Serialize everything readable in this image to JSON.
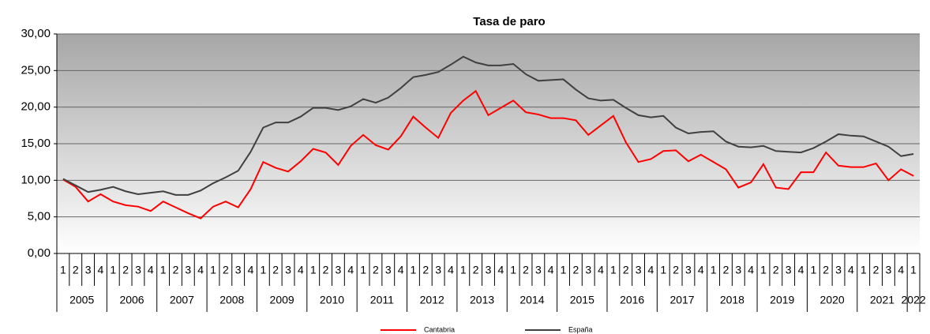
{
  "chart_data": {
    "type": "line",
    "title": "Tasa de paro",
    "categories": [
      "1",
      "2",
      "3",
      "4",
      "1",
      "2",
      "3",
      "4",
      "1",
      "2",
      "3",
      "4",
      "1",
      "2",
      "3",
      "4",
      "1",
      "2",
      "3",
      "4",
      "1",
      "2",
      "3",
      "4",
      "1",
      "2",
      "3",
      "4",
      "1",
      "2",
      "3",
      "4",
      "1",
      "2",
      "3",
      "4",
      "1",
      "2",
      "3",
      "4",
      "1",
      "2",
      "3",
      "4",
      "1",
      "2",
      "3",
      "4",
      "1",
      "2",
      "3",
      "4",
      "1",
      "2",
      "3",
      "4",
      "1",
      "2",
      "3",
      "4",
      "1",
      "2",
      "3",
      "4",
      "1",
      "2",
      "3",
      "4",
      "1"
    ],
    "years": [
      "2005",
      "2006",
      "2007",
      "2008",
      "2009",
      "2010",
      "2011",
      "2012",
      "2013",
      "2014",
      "2015",
      "2016",
      "2017",
      "2018",
      "2019",
      "2020",
      "2021",
      "2022"
    ],
    "series": [
      {
        "name": "Cantabria",
        "color": "#ff0000",
        "values": [
          10.1,
          9.1,
          7.1,
          8.1,
          7.1,
          6.6,
          6.4,
          5.8,
          7.1,
          6.3,
          5.5,
          4.8,
          6.4,
          7.1,
          6.3,
          8.8,
          12.5,
          11.7,
          11.2,
          12.6,
          14.3,
          13.8,
          12.1,
          14.7,
          16.2,
          14.8,
          14.2,
          16.0,
          18.7,
          17.2,
          15.8,
          19.2,
          20.9,
          22.2,
          18.9,
          19.9,
          20.9,
          19.3,
          19.0,
          18.5,
          18.5,
          18.2,
          16.2,
          17.5,
          18.8,
          15.2,
          12.5,
          12.9,
          14.0,
          14.1,
          12.6,
          13.5,
          12.5,
          11.5,
          9.0,
          9.7,
          12.2,
          9.0,
          8.8,
          11.1,
          11.1,
          13.8,
          12.0,
          11.8,
          11.8,
          12.3,
          10.0,
          11.5,
          10.6
        ]
      },
      {
        "name": "España",
        "color": "#404040",
        "values": [
          10.2,
          9.3,
          8.4,
          8.7,
          9.1,
          8.5,
          8.1,
          8.3,
          8.5,
          8.0,
          8.0,
          8.6,
          9.6,
          10.4,
          11.3,
          13.9,
          17.2,
          17.9,
          17.9,
          18.7,
          19.9,
          19.9,
          19.6,
          20.1,
          21.1,
          20.6,
          21.3,
          22.6,
          24.1,
          24.4,
          24.8,
          25.8,
          26.9,
          26.1,
          25.7,
          25.7,
          25.9,
          24.5,
          23.6,
          23.7,
          23.8,
          22.4,
          21.2,
          20.9,
          21.0,
          19.9,
          18.9,
          18.6,
          18.8,
          17.2,
          16.4,
          16.6,
          16.7,
          15.3,
          14.6,
          14.5,
          14.7,
          14.0,
          13.9,
          13.8,
          14.4,
          15.3,
          16.3,
          16.1,
          16.0,
          15.3,
          14.6,
          13.3,
          13.6
        ]
      }
    ],
    "ylim": [
      0,
      30
    ],
    "yticks": [
      {
        "value": 0,
        "label": "0,00"
      },
      {
        "value": 5,
        "label": "5,00"
      },
      {
        "value": 10,
        "label": "10,00"
      },
      {
        "value": 15,
        "label": "15,00"
      },
      {
        "value": 20,
        "label": "20,00"
      },
      {
        "value": 25,
        "label": "25,00"
      },
      {
        "value": 30,
        "label": "30,00"
      }
    ],
    "grid": true
  }
}
